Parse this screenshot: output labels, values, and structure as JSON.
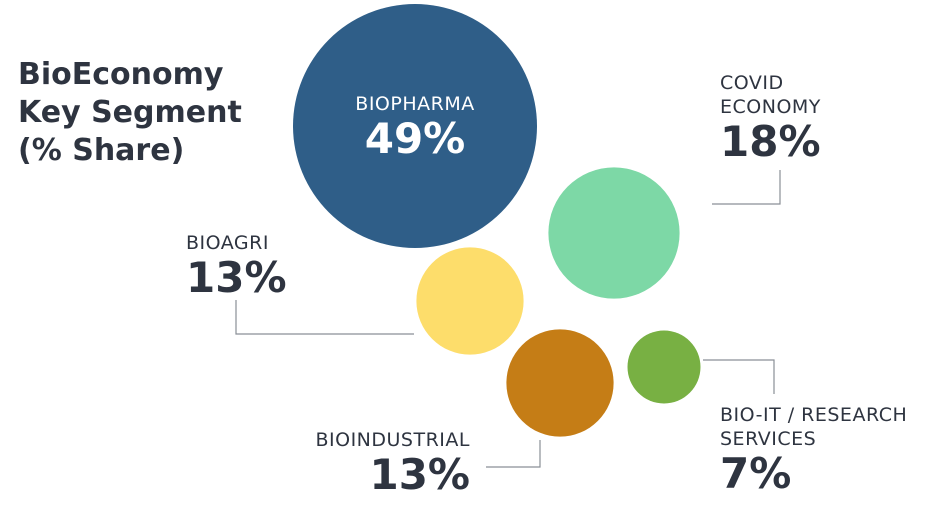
{
  "title_lines": [
    "BioEconomy",
    "Key Segment",
    "(% Share)"
  ],
  "chart_data": {
    "type": "bubble",
    "title": "BioEconomy Key Segment (% Share)",
    "unit": "%",
    "series": [
      {
        "name_lines": [
          "BIOPHARMA"
        ],
        "name": "BIOPHARMA",
        "value": 49,
        "label": "49%",
        "color": "#2f5e88"
      },
      {
        "name_lines": [
          "COVID",
          "ECONOMY"
        ],
        "name": "COVID ECONOMY",
        "value": 18,
        "label": "18%",
        "color": "#7dd8a6"
      },
      {
        "name_lines": [
          "BIOAGRI"
        ],
        "name": "BIOAGRI",
        "value": 13,
        "label": "13%",
        "color": "#fddd6b"
      },
      {
        "name_lines": [
          "BIOINDUSTRIAL"
        ],
        "name": "BIOINDUSTRIAL",
        "value": 13,
        "label": "13%",
        "color": "#c57d16"
      },
      {
        "name_lines": [
          "BIO-IT / RESEARCH",
          "SERVICES"
        ],
        "name": "BIO-IT / RESEARCH SERVICES",
        "value": 7,
        "label": "7%",
        "color": "#78b043"
      }
    ]
  }
}
